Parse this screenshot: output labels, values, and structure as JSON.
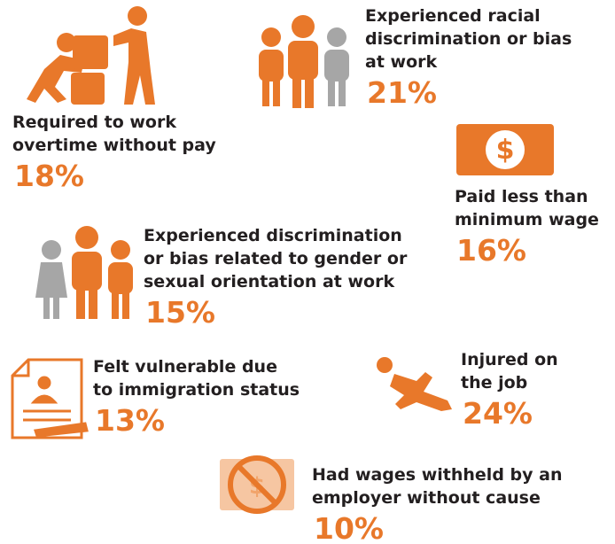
{
  "items": [
    {
      "label_lines": [
        "Required to work",
        "overtime without pay"
      ],
      "value": "18%"
    },
    {
      "label_lines": [
        "Experienced racial",
        "discrimination or bias",
        "at work"
      ],
      "value": "21%"
    },
    {
      "label_lines": [
        "Paid less than",
        "minimum wage"
      ],
      "value": "16%"
    },
    {
      "label_lines": [
        "Experienced discrimination",
        "or bias related to gender or",
        "sexual orientation at work"
      ],
      "value": "15%"
    },
    {
      "label_lines": [
        "Felt vulnerable due",
        "to immigration status"
      ],
      "value": "13%"
    },
    {
      "label_lines": [
        "Injured on",
        "the job"
      ],
      "value": "24%"
    },
    {
      "label_lines": [
        "Had wages withheld by an",
        "employer without cause"
      ],
      "value": "10%"
    }
  ]
}
